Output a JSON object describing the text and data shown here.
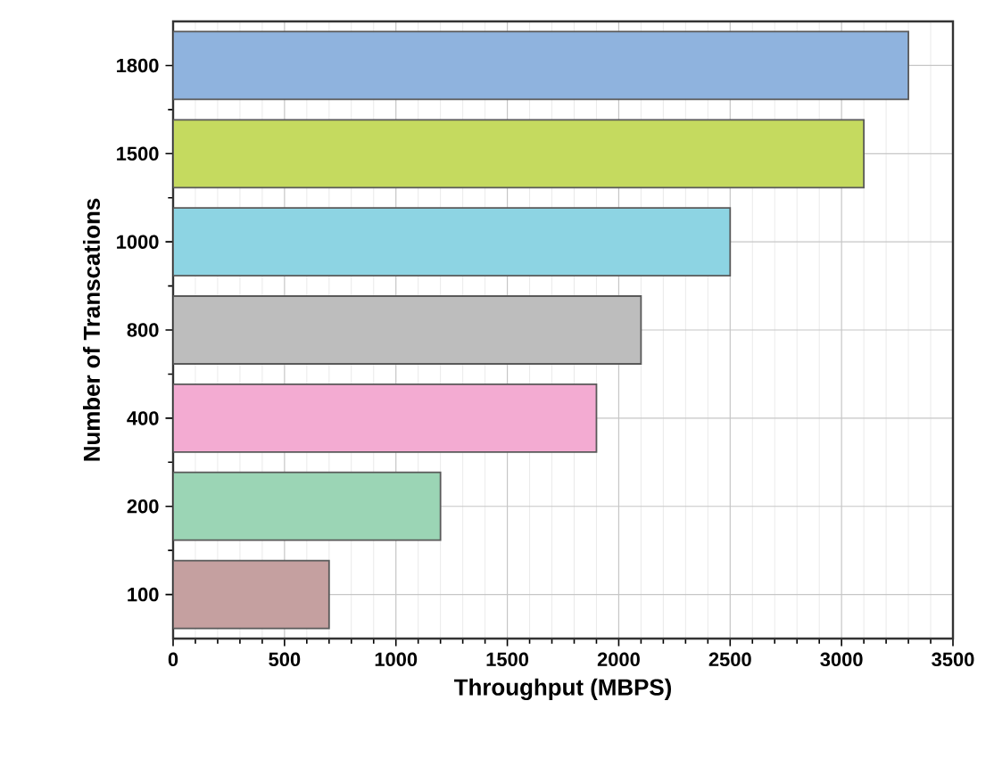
{
  "chart_data": {
    "type": "bar",
    "orientation": "horizontal",
    "xlabel": "Throughput (MBPS)",
    "ylabel": "Number of Transcations",
    "categories": [
      "1800",
      "1500",
      "1000",
      "800",
      "400",
      "200",
      "100"
    ],
    "values": [
      3300,
      3100,
      2500,
      2100,
      1900,
      1200,
      700
    ],
    "colors": [
      "#8fb3de",
      "#c5da5f",
      "#8dd4e3",
      "#bdbdbd",
      "#f3abd2",
      "#9bd5b5",
      "#c5a0a0"
    ],
    "xlim": [
      0,
      3500
    ],
    "xticks": [
      0,
      500,
      1000,
      1500,
      2000,
      2500,
      3000,
      3500
    ],
    "grid": true
  }
}
